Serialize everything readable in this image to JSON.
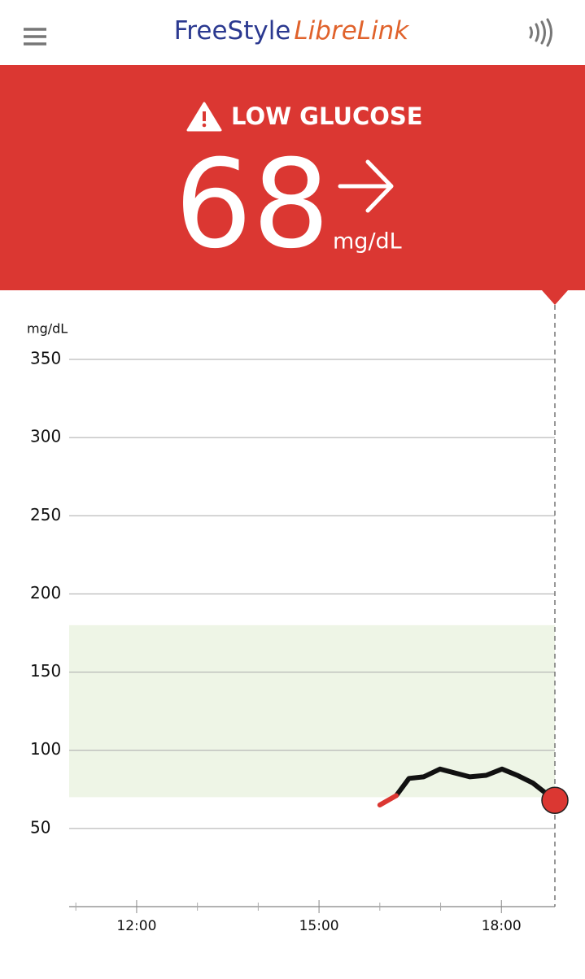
{
  "header": {
    "brand_1": "FreeStyle",
    "brand_2": "LibreLink"
  },
  "alert": {
    "title": "LOW GLUCOSE",
    "value": 68,
    "unit": "mg/dL"
  },
  "chart_data": {
    "type": "line",
    "y_label": "mg/dL",
    "x": [
      16.0,
      16.27,
      16.48,
      16.72,
      16.99,
      17.48,
      17.75,
      18.01,
      18.26,
      18.52,
      18.88
    ],
    "series": [
      {
        "color": "#111111",
        "values": [
          null,
          71,
          82,
          83,
          88,
          83,
          84,
          88,
          84,
          79,
          68
        ]
      },
      {
        "color": "#db3732",
        "values": [
          65,
          71,
          null,
          null,
          null,
          null,
          null,
          null,
          null,
          null,
          null
        ]
      }
    ],
    "target_range": [
      70,
      180
    ],
    "target_color": "#eef5e6",
    "xlim": [
      10.89,
      18.88
    ],
    "ylim": [
      0,
      350
    ],
    "yticks": [
      50,
      100,
      150,
      200,
      250,
      300,
      350
    ],
    "xticks": [
      {
        "value": 12,
        "label": "12:00"
      },
      {
        "value": 15,
        "label": "15:00"
      },
      {
        "value": 18,
        "label": "18:00"
      }
    ],
    "minor_xticks": [
      11,
      13,
      14,
      16,
      17
    ],
    "grid": true
  }
}
